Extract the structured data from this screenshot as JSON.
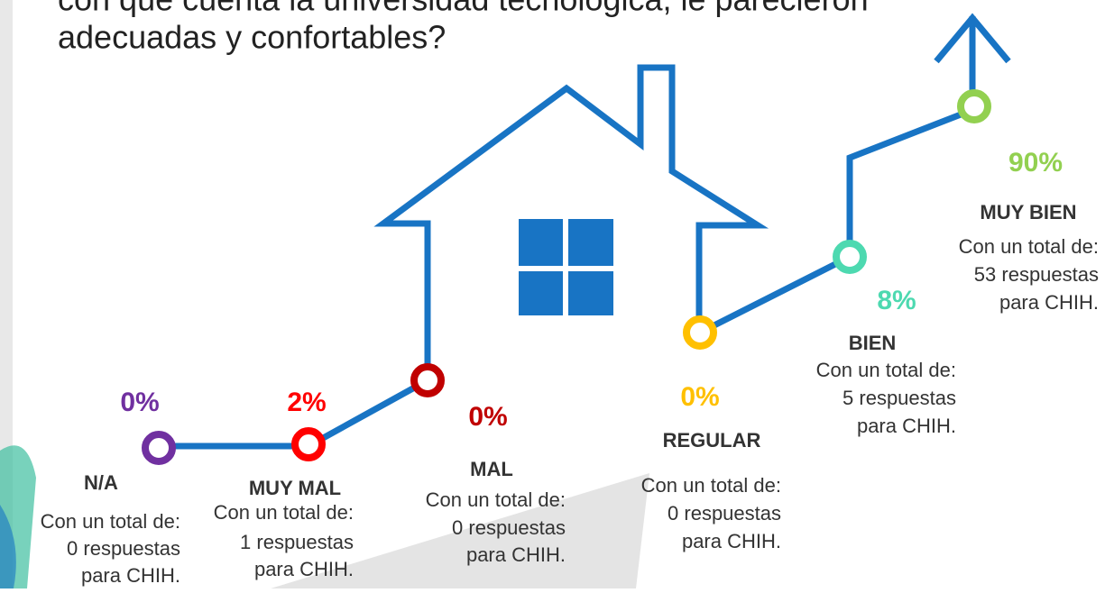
{
  "title": {
    "lines": [
      "con que cuenta la universidad tecnológica, le parecieron",
      "adecuadas y confortables?"
    ]
  },
  "items": [
    {
      "percent": "0%",
      "label": "N/A",
      "desc": [
        "Con un total de:",
        "0 respuestas",
        "para CHIH."
      ]
    },
    {
      "percent": "2%",
      "label": "MUY MAL",
      "desc": [
        "Con un total de:",
        "1 respuestas",
        "para CHIH."
      ]
    },
    {
      "percent": "0%",
      "label": "MAL",
      "desc": [
        "Con un total de:",
        "0 respuestas",
        "para CHIH."
      ]
    },
    {
      "percent": "0%",
      "label": "REGULAR",
      "desc": [
        "Con un total de:",
        "0 respuestas",
        "para CHIH."
      ]
    },
    {
      "percent": "8%",
      "label": "BIEN",
      "desc": [
        "Con un total de:",
        "5 respuestas",
        "para CHIH."
      ]
    },
    {
      "percent": "90%",
      "label": "MUY BIEN",
      "desc": [
        "Con un total de:",
        "53 respuestas",
        "para CHIH."
      ]
    }
  ]
}
